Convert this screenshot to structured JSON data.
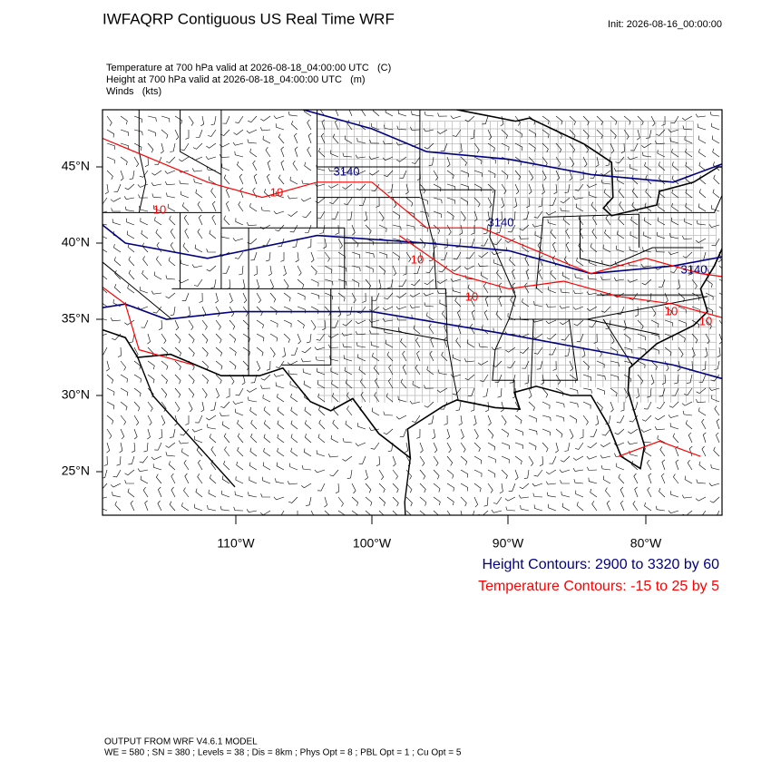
{
  "header": {
    "title": "IWFAQRP Contiguous US Real Time WRF",
    "init": "Init: 2026-08-16_00:00:00",
    "fields": [
      "Temperature at 700 hPa valid at 2026-08-18_04:00:00 UTC   (C)",
      "Height at 700 hPa valid at 2026-08-18_04:00:00 UTC   (m)",
      "Winds   (kts)"
    ]
  },
  "map": {
    "lat_labels": [
      "45°N",
      "40°N",
      "35°N",
      "30°N",
      "25°N"
    ],
    "lon_labels": [
      "110°W",
      "100°W",
      "90°W",
      "80°W"
    ],
    "height_contour_labels": [
      "3140",
      "3140",
      "3140"
    ],
    "temperature_contour_labels": [
      "10",
      "10",
      "10",
      "10",
      "10",
      "10"
    ]
  },
  "legend": {
    "height": "Height Contours: 2900 to 3320 by 60",
    "temperature": "Temperature Contours: -15 to 25 by 5"
  },
  "footer": {
    "model": "OUTPUT FROM WRF V4.6.1 MODEL",
    "options": "WE = 580 ; SN = 380 ; Levels = 38 ; Dis = 8km ; Phys Opt = 8 ; PBL Opt = 1 ; Cu Opt = 5"
  }
}
